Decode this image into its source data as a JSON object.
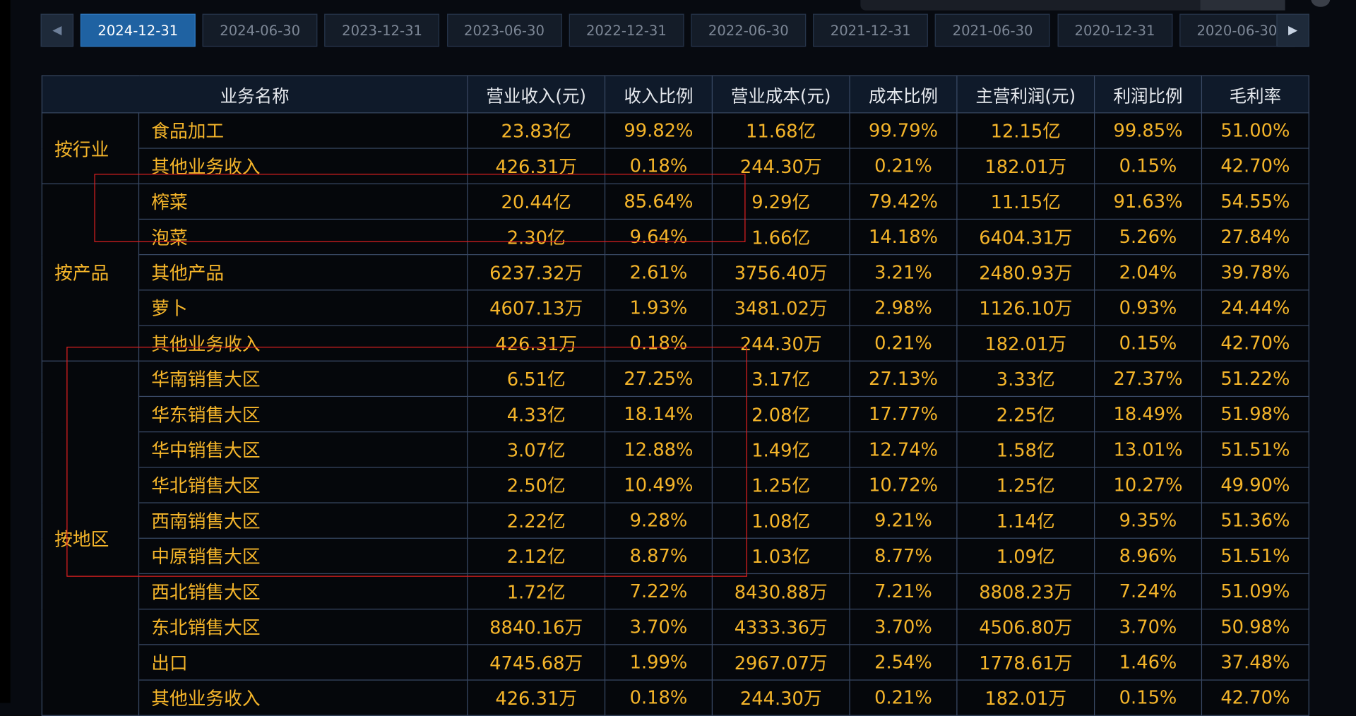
{
  "tabs": {
    "prev_icon": "chevron-left-icon",
    "next_icon": "chevron-right-icon",
    "items": [
      "2024-12-31",
      "2024-06-30",
      "2023-12-31",
      "2023-06-30",
      "2022-12-31",
      "2022-06-30",
      "2021-12-31",
      "2021-06-30",
      "2020-12-31",
      "2020-06-30"
    ],
    "active_index": 0
  },
  "table": {
    "headers": [
      "业务名称",
      "营业收入(元)",
      "收入比例",
      "营业成本(元)",
      "成本比例",
      "主营利润(元)",
      "利润比例",
      "毛利率"
    ],
    "groups": [
      {
        "label": "按行业",
        "rows": [
          [
            "食品加工",
            "23.83亿",
            "99.82%",
            "11.68亿",
            "99.79%",
            "12.15亿",
            "99.85%",
            "51.00%"
          ],
          [
            "其他业务收入",
            "426.31万",
            "0.18%",
            "244.30万",
            "0.21%",
            "182.01万",
            "0.15%",
            "42.70%"
          ]
        ]
      },
      {
        "label": "按产品",
        "rows": [
          [
            "榨菜",
            "20.44亿",
            "85.64%",
            "9.29亿",
            "79.42%",
            "11.15亿",
            "91.63%",
            "54.55%"
          ],
          [
            "泡菜",
            "2.30亿",
            "9.64%",
            "1.66亿",
            "14.18%",
            "6404.31万",
            "5.26%",
            "27.84%"
          ],
          [
            "其他产品",
            "6237.32万",
            "2.61%",
            "3756.40万",
            "3.21%",
            "2480.93万",
            "2.04%",
            "39.78%"
          ],
          [
            "萝卜",
            "4607.13万",
            "1.93%",
            "3481.02万",
            "2.98%",
            "1126.10万",
            "0.93%",
            "24.44%"
          ],
          [
            "其他业务收入",
            "426.31万",
            "0.18%",
            "244.30万",
            "0.21%",
            "182.01万",
            "0.15%",
            "42.70%"
          ]
        ]
      },
      {
        "label": "按地区",
        "rows": [
          [
            "华南销售大区",
            "6.51亿",
            "27.25%",
            "3.17亿",
            "27.13%",
            "3.33亿",
            "27.37%",
            "51.22%"
          ],
          [
            "华东销售大区",
            "4.33亿",
            "18.14%",
            "2.08亿",
            "17.77%",
            "2.25亿",
            "18.49%",
            "51.98%"
          ],
          [
            "华中销售大区",
            "3.07亿",
            "12.88%",
            "1.49亿",
            "12.74%",
            "1.58亿",
            "13.01%",
            "51.51%"
          ],
          [
            "华北销售大区",
            "2.50亿",
            "10.49%",
            "1.25亿",
            "10.72%",
            "1.25亿",
            "10.27%",
            "49.90%"
          ],
          [
            "西南销售大区",
            "2.22亿",
            "9.28%",
            "1.08亿",
            "9.21%",
            "1.14亿",
            "9.35%",
            "51.36%"
          ],
          [
            "中原销售大区",
            "2.12亿",
            "8.87%",
            "1.03亿",
            "8.77%",
            "1.09亿",
            "8.96%",
            "51.51%"
          ],
          [
            "西北销售大区",
            "1.72亿",
            "7.22%",
            "8430.88万",
            "7.21%",
            "8808.23万",
            "7.24%",
            "51.09%"
          ],
          [
            "东北销售大区",
            "8840.16万",
            "3.70%",
            "4333.36万",
            "3.70%",
            "4506.80万",
            "3.70%",
            "50.98%"
          ],
          [
            "出口",
            "4745.68万",
            "1.99%",
            "2967.07万",
            "2.54%",
            "1778.61万",
            "1.46%",
            "37.48%"
          ],
          [
            "其他业务收入",
            "426.31万",
            "0.18%",
            "244.30万",
            "0.21%",
            "182.01万",
            "0.15%",
            "42.70%"
          ]
        ]
      }
    ]
  },
  "colors": {
    "value_text": "#f5b52a",
    "header_text": "#e6e9ee",
    "active_tab": "#1f62a2",
    "annotation": "#e02020"
  }
}
